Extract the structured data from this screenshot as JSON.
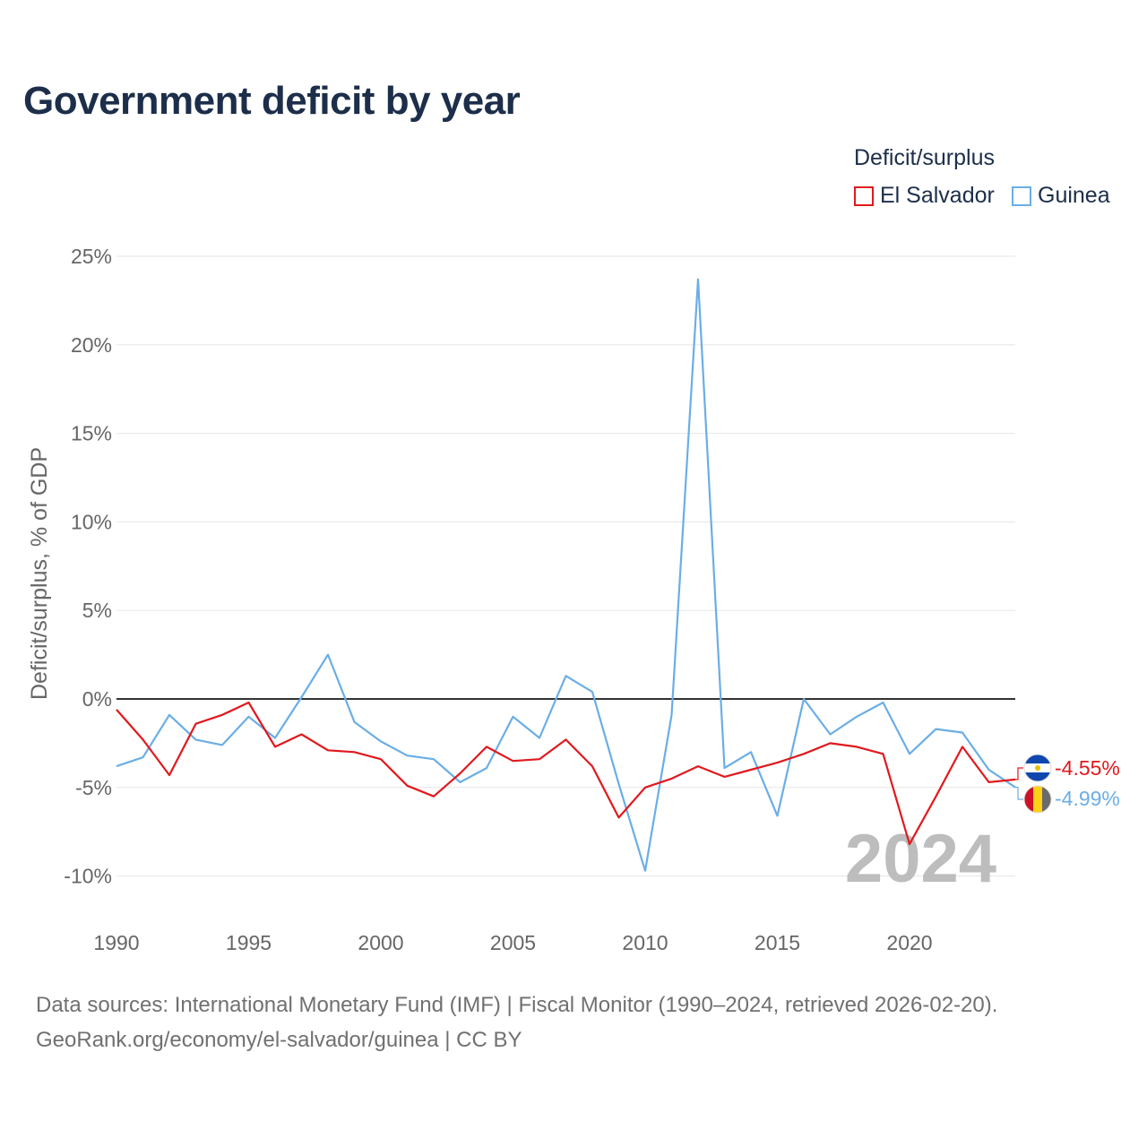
{
  "title": "Government deficit by year",
  "legend": {
    "title": "Deficit/surplus",
    "items": [
      {
        "name": "El Salvador",
        "color": "#e0191e"
      },
      {
        "name": "Guinea",
        "color": "#6aaee6"
      }
    ]
  },
  "chart_data": {
    "type": "line",
    "title": "Government deficit by year",
    "xlabel": "",
    "ylabel": "Deficit/surplus, % of GDP",
    "xlim": [
      1990,
      2024
    ],
    "ylim": [
      -12,
      25
    ],
    "yticks": [
      -10,
      -5,
      0,
      5,
      10,
      15,
      20,
      25
    ],
    "ytick_labels": [
      "-10%",
      "-5%",
      "0%",
      "5%",
      "10%",
      "15%",
      "20%",
      "25%"
    ],
    "xticks": [
      1990,
      1995,
      2000,
      2005,
      2010,
      2015,
      2020
    ],
    "xtick_labels": [
      "1990",
      "1995",
      "2000",
      "2005",
      "2010",
      "2015",
      "2020"
    ],
    "grid": true,
    "legend_position": "top-right",
    "x": [
      1990,
      1991,
      1992,
      1993,
      1994,
      1995,
      1996,
      1997,
      1998,
      1999,
      2000,
      2001,
      2002,
      2003,
      2004,
      2005,
      2006,
      2007,
      2008,
      2009,
      2010,
      2011,
      2012,
      2013,
      2014,
      2015,
      2016,
      2017,
      2018,
      2019,
      2020,
      2021,
      2022,
      2023,
      2024
    ],
    "series": [
      {
        "name": "El Salvador",
        "color": "#e0191e",
        "values": [
          -0.6,
          -2.3,
          -4.3,
          -1.4,
          -0.9,
          -0.2,
          -2.7,
          -2.0,
          -2.9,
          -3.0,
          -3.4,
          -4.9,
          -5.5,
          -4.2,
          -2.7,
          -3.5,
          -3.4,
          -2.3,
          -3.8,
          -6.7,
          -5.0,
          -4.5,
          -3.8,
          -4.4,
          -4.0,
          -3.6,
          -3.1,
          -2.5,
          -2.7,
          -3.1,
          -8.2,
          -5.5,
          -2.7,
          -4.7,
          -4.55
        ],
        "end_label": "-4.55%"
      },
      {
        "name": "Guinea",
        "color": "#6aaee6",
        "values": [
          -3.8,
          -3.3,
          -0.9,
          -2.3,
          -2.6,
          -1.0,
          -2.2,
          0.1,
          2.5,
          -1.3,
          -2.4,
          -3.2,
          -3.4,
          -4.7,
          -3.9,
          -1.0,
          -2.2,
          1.3,
          0.4,
          -4.8,
          -9.7,
          -0.9,
          23.7,
          -3.9,
          -3.0,
          -6.6,
          0.0,
          -2.0,
          -1.0,
          -0.2,
          -3.1,
          -1.7,
          -1.9,
          -4.0,
          -4.99
        ],
        "end_label": "-4.99%"
      }
    ],
    "year_label": "2024"
  },
  "sources": {
    "line1": "Data sources: International Monetary Fund (IMF) | Fiscal Monitor (1990–2024, retrieved 2026-02-20).",
    "line2": "GeoRank.org/economy/el-salvador/guinea | CC BY"
  }
}
